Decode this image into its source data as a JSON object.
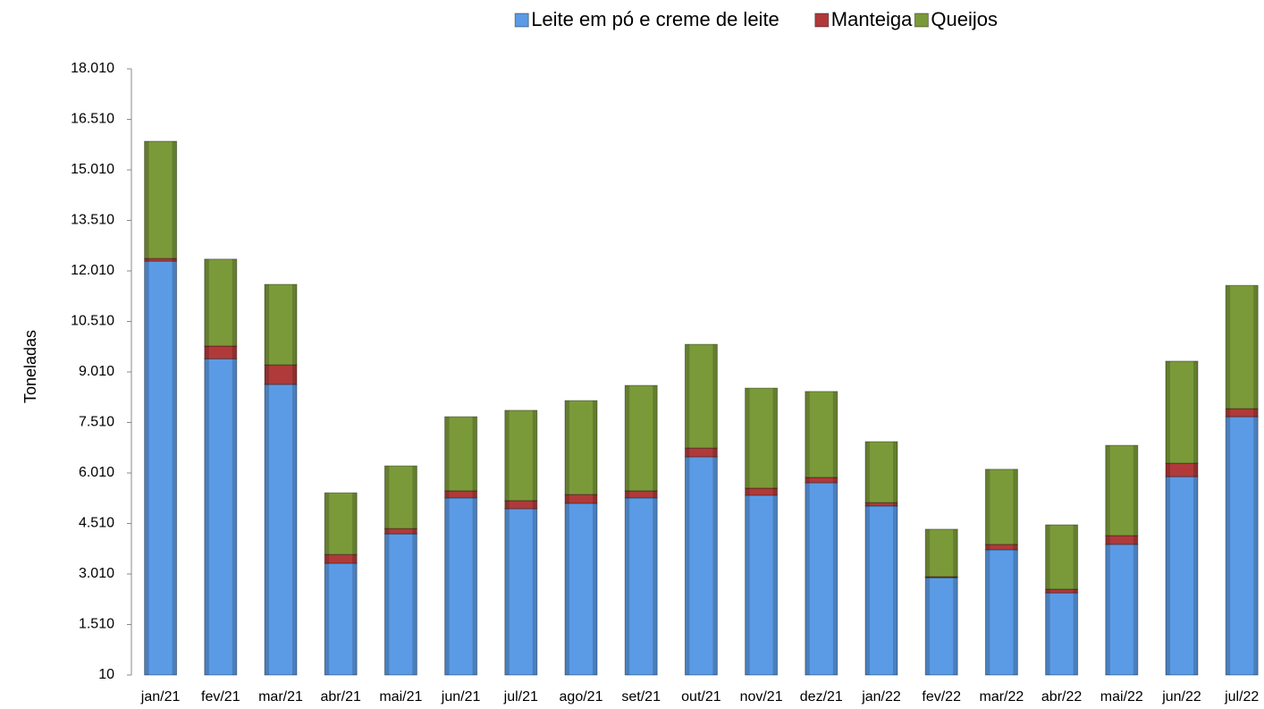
{
  "chart_data": {
    "type": "stacked_bar",
    "y_label": "Toneladas",
    "categories": [
      "jan/21",
      "fev/21",
      "mar/21",
      "abr/21",
      "mai/21",
      "jun/21",
      "jul/21",
      "ago/21",
      "set/21",
      "out/21",
      "nov/21",
      "dez/21",
      "jan/22",
      "fev/22",
      "mar/22",
      "abr/22",
      "mai/22",
      "jun/22",
      "jul/22"
    ],
    "series": [
      {
        "name": "Leite em pó e creme de leite",
        "color": "#5b9be6",
        "values": [
          12300,
          9400,
          8640,
          3330,
          4200,
          5270,
          4950,
          5110,
          5270,
          6490,
          5350,
          5720,
          5030,
          2900,
          3730,
          2450,
          3890,
          5900,
          7680
        ]
      },
      {
        "name": "Manteiga",
        "color": "#b03a3a",
        "values": [
          80,
          380,
          580,
          260,
          160,
          210,
          240,
          260,
          210,
          260,
          210,
          160,
          100,
          30,
          160,
          110,
          260,
          400,
          240
        ]
      },
      {
        "name": "Queijos",
        "color": "#7a9a3a",
        "values": [
          3480,
          2580,
          2390,
          1830,
          1860,
          2200,
          2680,
          2790,
          3130,
          3080,
          2970,
          2550,
          1810,
          1410,
          2230,
          1910,
          2680,
          3030,
          3660
        ]
      }
    ],
    "ylim": [
      10,
      18010
    ],
    "yticks": [
      10,
      {
        "value": 1510,
        "label": "1.510"
      },
      {
        "value": 3010,
        "label": "3.010"
      },
      {
        "value": 4510,
        "label": "4.510"
      },
      {
        "value": 6010,
        "label": "6.010"
      },
      {
        "value": 7510,
        "label": "7.510"
      },
      {
        "value": 9010,
        "label": "9.010"
      },
      {
        "value": 10510,
        "label": "10.510"
      },
      {
        "value": 12010,
        "label": "12.010"
      },
      {
        "value": 13510,
        "label": "13.510"
      },
      {
        "value": 15010,
        "label": "15.010"
      },
      {
        "value": 16510,
        "label": "16.510"
      },
      {
        "value": 18010,
        "label": "18.010"
      }
    ],
    "grid": false,
    "legend": "top"
  }
}
